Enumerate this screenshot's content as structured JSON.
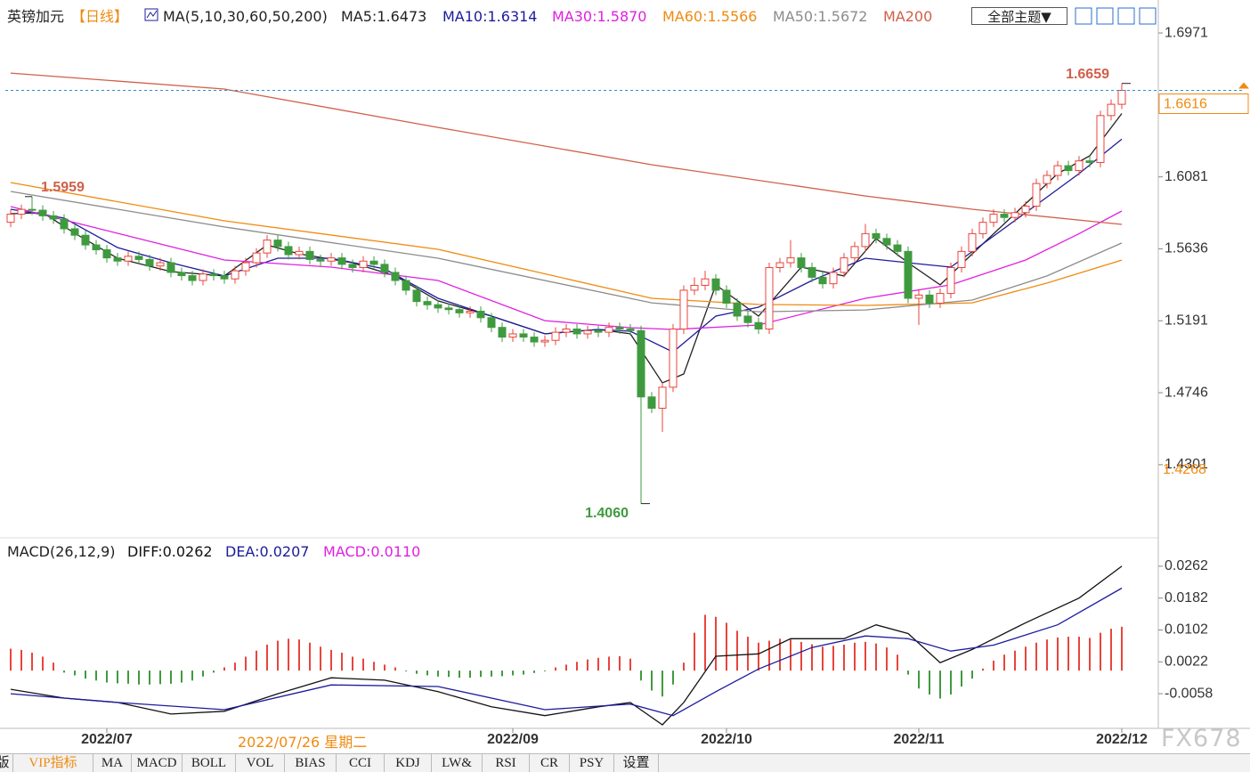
{
  "chart_data": [
    {
      "type": "candlestick",
      "title": "英镑加元",
      "period": "【日线】",
      "indicator": "MA(5,10,30,60,50,200)",
      "open": [
        1.58,
        1.585,
        1.588,
        1.5875,
        1.584,
        1.582,
        1.576,
        1.572,
        1.566,
        1.563,
        1.558,
        1.556,
        1.559,
        1.557,
        1.553,
        1.555,
        1.549,
        1.547,
        1.544,
        1.548,
        1.547,
        1.545,
        1.55,
        1.555,
        1.561,
        1.569,
        1.565,
        1.56,
        1.562,
        1.557,
        1.556,
        1.558,
        1.554,
        1.552,
        1.556,
        1.554,
        1.549,
        1.544,
        1.538,
        1.531,
        1.529,
        1.527,
        1.526,
        1.524,
        1.525,
        1.521,
        1.515,
        1.509,
        1.511,
        1.509,
        1.506,
        1.507,
        1.512,
        1.514,
        1.511,
        1.513,
        1.512,
        1.515,
        1.514,
        1.513,
        1.472,
        1.465,
        1.478,
        1.514,
        1.538,
        1.541,
        1.545,
        1.538,
        1.53,
        1.522,
        1.518,
        1.514,
        1.552,
        1.555,
        1.558,
        1.552,
        1.546,
        1.542,
        1.549,
        1.558,
        1.565,
        1.573,
        1.57,
        1.566,
        1.562,
        1.533,
        1.535,
        1.53,
        1.536,
        1.552,
        1.562,
        1.573,
        1.58,
        1.585,
        1.583,
        1.586,
        1.59,
        1.604,
        1.609,
        1.615,
        1.612,
        1.618,
        1.617,
        1.646,
        1.653
      ],
      "high": [
        1.588,
        1.591,
        1.5959,
        1.5905,
        1.587,
        1.585,
        1.579,
        1.575,
        1.569,
        1.566,
        1.561,
        1.562,
        1.562,
        1.56,
        1.558,
        1.558,
        1.552,
        1.55,
        1.551,
        1.551,
        1.55,
        1.553,
        1.558,
        1.564,
        1.572,
        1.572,
        1.568,
        1.565,
        1.565,
        1.56,
        1.561,
        1.561,
        1.557,
        1.559,
        1.559,
        1.557,
        1.552,
        1.547,
        1.541,
        1.534,
        1.532,
        1.53,
        1.529,
        1.528,
        1.528,
        1.524,
        1.518,
        1.514,
        1.514,
        1.512,
        1.51,
        1.515,
        1.517,
        1.517,
        1.516,
        1.516,
        1.518,
        1.518,
        1.517,
        1.516,
        1.475,
        1.481,
        1.517,
        1.541,
        1.546,
        1.55,
        1.548,
        1.541,
        1.533,
        1.525,
        1.521,
        1.555,
        1.558,
        1.569,
        1.561,
        1.555,
        1.549,
        1.552,
        1.561,
        1.568,
        1.579,
        1.576,
        1.573,
        1.569,
        1.565,
        1.538,
        1.538,
        1.539,
        1.555,
        1.565,
        1.576,
        1.583,
        1.588,
        1.588,
        1.589,
        1.593,
        1.607,
        1.612,
        1.618,
        1.618,
        1.621,
        1.621,
        1.649,
        1.656,
        1.6659
      ],
      "low": [
        1.577,
        1.582,
        1.5845,
        1.581,
        1.579,
        1.573,
        1.569,
        1.563,
        1.56,
        1.555,
        1.553,
        1.553,
        1.554,
        1.55,
        1.55,
        1.546,
        1.544,
        1.541,
        1.541,
        1.544,
        1.542,
        1.542,
        1.547,
        1.552,
        1.558,
        1.562,
        1.557,
        1.557,
        1.554,
        1.553,
        1.553,
        1.551,
        1.549,
        1.549,
        1.551,
        1.546,
        1.541,
        1.535,
        1.528,
        1.526,
        1.524,
        1.523,
        1.521,
        1.521,
        1.518,
        1.512,
        1.506,
        1.506,
        1.506,
        1.503,
        1.503,
        1.504,
        1.509,
        1.508,
        1.508,
        1.509,
        1.509,
        1.511,
        1.51,
        1.406,
        1.462,
        1.4504,
        1.475,
        1.511,
        1.535,
        1.538,
        1.535,
        1.527,
        1.519,
        1.515,
        1.511,
        1.511,
        1.549,
        1.552,
        1.549,
        1.543,
        1.539,
        1.539,
        1.546,
        1.555,
        1.562,
        1.567,
        1.563,
        1.559,
        1.53,
        1.5165,
        1.527,
        1.527,
        1.533,
        1.549,
        1.559,
        1.57,
        1.577,
        1.58,
        1.58,
        1.583,
        1.587,
        1.601,
        1.606,
        1.609,
        1.609,
        1.614,
        1.614,
        1.643,
        1.65
      ],
      "close": [
        1.585,
        1.588,
        1.5875,
        1.584,
        1.582,
        1.576,
        1.572,
        1.566,
        1.563,
        1.558,
        1.556,
        1.559,
        1.557,
        1.553,
        1.555,
        1.549,
        1.547,
        1.544,
        1.548,
        1.547,
        1.545,
        1.55,
        1.555,
        1.561,
        1.569,
        1.565,
        1.56,
        1.562,
        1.557,
        1.556,
        1.558,
        1.554,
        1.552,
        1.556,
        1.554,
        1.549,
        1.544,
        1.538,
        1.531,
        1.529,
        1.527,
        1.526,
        1.524,
        1.525,
        1.521,
        1.515,
        1.509,
        1.511,
        1.509,
        1.506,
        1.507,
        1.512,
        1.514,
        1.511,
        1.513,
        1.512,
        1.515,
        1.514,
        1.513,
        1.472,
        1.465,
        1.478,
        1.514,
        1.538,
        1.541,
        1.545,
        1.538,
        1.53,
        1.522,
        1.518,
        1.514,
        1.552,
        1.555,
        1.558,
        1.552,
        1.546,
        1.542,
        1.549,
        1.558,
        1.565,
        1.573,
        1.57,
        1.566,
        1.562,
        1.533,
        1.535,
        1.53,
        1.536,
        1.552,
        1.562,
        1.573,
        1.58,
        1.585,
        1.583,
        1.586,
        1.59,
        1.604,
        1.609,
        1.615,
        1.612,
        1.618,
        1.617,
        1.646,
        1.653,
        1.6616
      ],
      "up_color": "#e8453c",
      "down_color": "#3f9a3f",
      "series": [
        {
          "name": "MA5:1.6473",
          "color": "#222222",
          "x": [
            0,
            3,
            6,
            10,
            15,
            20,
            24,
            27,
            32,
            36,
            40,
            45,
            50,
            55,
            58,
            61,
            63,
            66,
            70,
            74,
            78,
            81,
            84,
            87,
            90,
            94,
            98,
            101,
            104
          ],
          "values": [
            1.5853,
            1.586,
            1.5732,
            1.5578,
            1.5495,
            1.5468,
            1.566,
            1.5605,
            1.555,
            1.5468,
            1.5314,
            1.522,
            1.511,
            1.5137,
            1.511,
            1.4807,
            1.4862,
            1.5413,
            1.522,
            1.5523,
            1.5468,
            1.5699,
            1.555,
            1.5413,
            1.5605,
            1.5853,
            1.6101,
            1.6211,
            1.6473
          ]
        },
        {
          "name": "MA10:1.6314",
          "color": "#1c1c9c",
          "x": [
            0,
            5,
            10,
            15,
            20,
            25,
            30,
            35,
            40,
            45,
            50,
            55,
            58,
            62,
            66,
            70,
            75,
            80,
            84,
            88,
            92,
            96,
            100,
            104
          ],
          "values": [
            1.5881,
            1.5826,
            1.5644,
            1.555,
            1.5468,
            1.5578,
            1.5578,
            1.5512,
            1.533,
            1.522,
            1.511,
            1.5137,
            1.5126,
            1.4998,
            1.522,
            1.5275,
            1.544,
            1.5578,
            1.555,
            1.5523,
            1.5715,
            1.5908,
            1.6101,
            1.6314
          ]
        },
        {
          "name": "MA30:1.5870",
          "color": "#e020e0",
          "x": [
            0,
            10,
            20,
            30,
            40,
            50,
            58,
            62,
            70,
            80,
            88,
            95,
            100,
            104
          ],
          "values": [
            1.5897,
            1.5732,
            1.5567,
            1.5523,
            1.544,
            1.5192,
            1.5148,
            1.5137,
            1.5165,
            1.533,
            1.5413,
            1.5567,
            1.573,
            1.587
          ]
        },
        {
          "name": "MA60:1.5566",
          "color": "#f08a10",
          "x": [
            0,
            20,
            40,
            60,
            70,
            80,
            90,
            97,
            104
          ],
          "values": [
            1.6046,
            1.5809,
            1.5633,
            1.533,
            1.5292,
            1.5286,
            1.5302,
            1.5424,
            1.5566
          ]
        },
        {
          "name": "MA50:1.5672",
          "color": "#8c8c8c",
          "x": [
            0,
            20,
            40,
            60,
            70,
            80,
            90,
            97,
            104
          ],
          "values": [
            1.5991,
            1.5771,
            1.5578,
            1.5302,
            1.5247,
            1.5258,
            1.5319,
            1.5468,
            1.5672
          ]
        },
        {
          "name": "MA200",
          "color": "#d0604a",
          "x": [
            0,
            20,
            40,
            60,
            80,
            90,
            104
          ],
          "values": [
            1.6723,
            1.6624,
            1.6387,
            1.6156,
            1.5963,
            1.5881,
            1.5787
          ]
        }
      ],
      "xlim": [
        -0.5,
        107.5
      ],
      "ylim": [
        1.3854,
        1.7175
      ],
      "yticks": [
        1.6971,
        1.6081,
        1.5636,
        1.5191,
        1.4746,
        1.4301
      ],
      "annotations": [
        {
          "x": 104,
          "value": 1.6659,
          "label": "1.6659",
          "color": "#d0604a"
        },
        {
          "x": 2,
          "value": 1.5959,
          "label": "1.5959",
          "color": "#d0604a"
        },
        {
          "x": 59,
          "value": 1.406,
          "label": "1.4060",
          "color": "#3f9a3f"
        }
      ],
      "last_price": 1.6616,
      "last_price_color": "#f08a10",
      "price_line_color": "#2a8fd0",
      "level": 1.4268,
      "level_color": "#f08a10"
    },
    {
      "type": "macd",
      "title": "MACD(26,12,9)",
      "histogram": {
        "name": "MACD:0.0110",
        "color": "#e020e0",
        "up_color": "#e8453c",
        "down_color": "#3f9a3f",
        "values": [
          0.0055,
          0.0052,
          0.0045,
          0.0035,
          0.002,
          -0.0005,
          -0.0012,
          -0.002,
          -0.0025,
          -0.003,
          -0.0032,
          -0.0033,
          -0.0035,
          -0.0035,
          -0.0034,
          -0.0033,
          -0.003,
          -0.0025,
          -0.0015,
          -0.0005,
          0.0008,
          0.002,
          0.0035,
          0.005,
          0.0065,
          0.0075,
          0.008,
          0.0078,
          0.007,
          0.006,
          0.0052,
          0.0045,
          0.0035,
          0.003,
          0.0022,
          0.0015,
          0.0008,
          -0.0002,
          -0.0008,
          -0.0012,
          -0.0015,
          -0.0016,
          -0.0018,
          -0.0018,
          -0.0016,
          -0.0015,
          -0.0014,
          -0.0012,
          -0.001,
          -0.0006,
          -0.0002,
          0.0008,
          0.0015,
          0.0022,
          0.0028,
          0.0032,
          0.0035,
          0.0036,
          0.003,
          -0.0025,
          -0.005,
          -0.0065,
          -0.0035,
          0.002,
          0.0095,
          0.014,
          0.0135,
          0.012,
          0.01,
          0.0085,
          0.007,
          0.0075,
          0.008,
          0.0078,
          0.0072,
          0.0066,
          0.006,
          0.0062,
          0.0065,
          0.007,
          0.0072,
          0.0068,
          0.0058,
          0.004,
          -0.001,
          -0.0045,
          -0.006,
          -0.007,
          -0.006,
          -0.004,
          -0.002,
          0.0005,
          0.0025,
          0.004,
          0.005,
          0.006,
          0.007,
          0.0078,
          0.0083,
          0.0085,
          0.0085,
          0.0082,
          0.0095,
          0.0105,
          0.011
        ]
      },
      "series": [
        {
          "name": "DIFF:0.0262",
          "color": "#111111",
          "x": [
            0,
            5,
            10,
            15,
            20,
            25,
            30,
            35,
            40,
            45,
            50,
            55,
            58,
            61,
            63,
            66,
            70,
            73,
            78,
            81,
            84,
            87,
            90,
            95,
            100,
            104
          ],
          "values": [
            -0.0047,
            -0.0069,
            -0.008,
            -0.0109,
            -0.0102,
            -0.0058,
            -0.0018,
            -0.0024,
            -0.0053,
            -0.0091,
            -0.0113,
            -0.0091,
            -0.008,
            -0.0136,
            -0.008,
            0.0036,
            0.0042,
            0.008,
            0.008,
            0.0115,
            0.0093,
            0.002,
            0.0053,
            0.012,
            0.0182,
            0.0262
          ]
        },
        {
          "name": "DEA:0.0207",
          "color": "#1c1c9c",
          "x": [
            0,
            10,
            20,
            30,
            40,
            50,
            58,
            62,
            66,
            70,
            75,
            80,
            84,
            88,
            92,
            98,
            104
          ],
          "values": [
            -0.0058,
            -0.008,
            -0.0098,
            -0.0036,
            -0.004,
            -0.0098,
            -0.0084,
            -0.0113,
            -0.0053,
            0.0004,
            0.0058,
            0.0087,
            0.008,
            0.0049,
            0.0064,
            0.0115,
            0.0207
          ]
        }
      ],
      "xlim": [
        -0.5,
        107.5
      ],
      "ylim": [
        -0.0145,
        0.0331
      ],
      "yticks": [
        0.0262,
        0.0182,
        0.0102,
        0.0022,
        -0.0058
      ],
      "xticks": [
        {
          "value": 9,
          "label": "2022/07"
        },
        {
          "value": 47,
          "label": "2022/09"
        },
        {
          "value": 67,
          "label": "2022/10"
        },
        {
          "value": 85,
          "label": "2022/11"
        },
        {
          "value": 104,
          "label": "2022/12"
        }
      ],
      "crosshair_label": "2022/07/26 星期二"
    }
  ],
  "toolbar": {
    "theme_button": "全部主题▼"
  },
  "tabs": [
    "版",
    "VIP指标",
    "MA",
    "MACD",
    "BOLL",
    "VOL",
    "BIAS",
    "CCI",
    "KDJ",
    "LW&",
    "RSI",
    "CR",
    "PSY",
    "设置"
  ],
  "watermark": "FX678"
}
